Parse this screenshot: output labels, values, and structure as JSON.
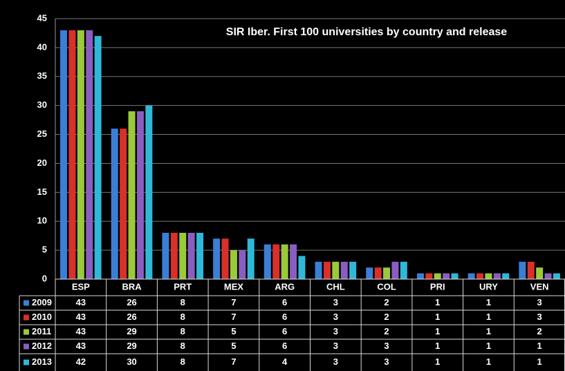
{
  "chart_data": {
    "type": "bar",
    "title": "SIR Iber. First 100 universities by country and release",
    "categories": [
      "ESP",
      "BRA",
      "PRT",
      "MEX",
      "ARG",
      "CHL",
      "COL",
      "PRI",
      "URY",
      "VEN"
    ],
    "series": [
      {
        "name": "2009",
        "color": "#3a7fd5",
        "values": [
          43,
          26,
          8,
          7,
          6,
          3,
          2,
          1,
          1,
          3
        ]
      },
      {
        "name": "2010",
        "color": "#d9302a",
        "values": [
          43,
          26,
          8,
          7,
          6,
          3,
          2,
          1,
          1,
          3
        ]
      },
      {
        "name": "2011",
        "color": "#9ac93a",
        "values": [
          43,
          29,
          8,
          5,
          6,
          3,
          2,
          1,
          1,
          2
        ]
      },
      {
        "name": "2012",
        "color": "#8a5ec0",
        "values": [
          43,
          29,
          8,
          5,
          6,
          3,
          3,
          1,
          1,
          1
        ]
      },
      {
        "name": "2013",
        "color": "#2fb8d8",
        "values": [
          42,
          30,
          8,
          7,
          4,
          3,
          3,
          1,
          1,
          1
        ]
      }
    ],
    "ylim": [
      0,
      45
    ],
    "yticks": [
      0,
      5,
      10,
      15,
      20,
      25,
      30,
      35,
      40,
      45
    ],
    "grid": true
  }
}
